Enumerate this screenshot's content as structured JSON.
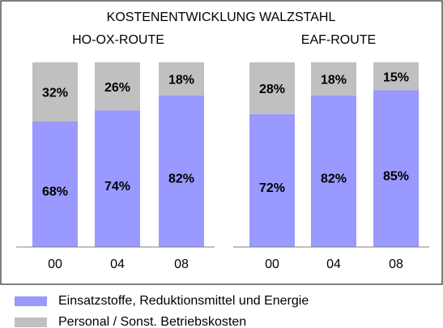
{
  "title": "KOSTENENTWICKLUNG WALZSTAHL",
  "chart_data": [
    {
      "type": "bar",
      "stacked": true,
      "title": "HO-OX-ROUTE",
      "categories": [
        "00",
        "04",
        "08"
      ],
      "series": [
        {
          "name": "Einsatzstoffe, Reduktionsmittel und Energie",
          "color": "#9999ff",
          "values": [
            68,
            74,
            82
          ],
          "value_labels": [
            "68%",
            "74%",
            "82%"
          ]
        },
        {
          "name": "Personal / Sonst. Betriebskosten",
          "color": "#c0c0c0",
          "values": [
            32,
            26,
            18
          ],
          "value_labels": [
            "32%",
            "26%",
            "18%"
          ]
        }
      ],
      "ylim": [
        0,
        100
      ]
    },
    {
      "type": "bar",
      "stacked": true,
      "title": "EAF-ROUTE",
      "categories": [
        "00",
        "04",
        "08"
      ],
      "series": [
        {
          "color": "#9999ff",
          "values": [
            72,
            82,
            85
          ],
          "value_labels": [
            "72%",
            "82%",
            "85%"
          ]
        },
        {
          "color": "#c0c0c0",
          "values": [
            28,
            18,
            15
          ],
          "value_labels": [
            "28%",
            "18%",
            "15%"
          ]
        }
      ],
      "ylim": [
        0,
        100
      ]
    }
  ]
}
